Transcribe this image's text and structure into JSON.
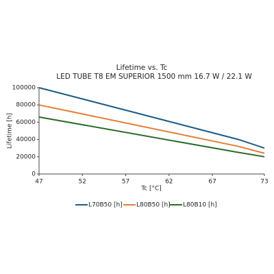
{
  "chart_data": {
    "type": "line",
    "title": "Lifetime vs. Tc",
    "subtitle": "LED TUBE T8 EM SUPERIOR 1500 mm 16.7 W / 22.1 W",
    "x_label": "Tc [°C]",
    "y_label": "Lifetime [h]",
    "x": [
      47,
      70,
      73
    ],
    "series": [
      {
        "name": "L70B50 [h]",
        "color": "#1b5a82",
        "values": [
          100000,
          40000,
          30000
        ]
      },
      {
        "name": "L80B50 [h]",
        "color": "#e57c35",
        "values": [
          80000,
          32000,
          24000
        ]
      },
      {
        "name": "L80B10 [h]",
        "color": "#2a6b2a",
        "values": [
          66000,
          25000,
          20000
        ]
      }
    ],
    "xlim": [
      47,
      73
    ],
    "xticks": [
      47,
      52,
      57,
      62,
      67,
      73
    ],
    "ylim": [
      0,
      100000
    ],
    "yticks": [
      0,
      20000,
      40000,
      60000,
      80000,
      100000
    ],
    "grid": false,
    "legend": "bottom"
  }
}
